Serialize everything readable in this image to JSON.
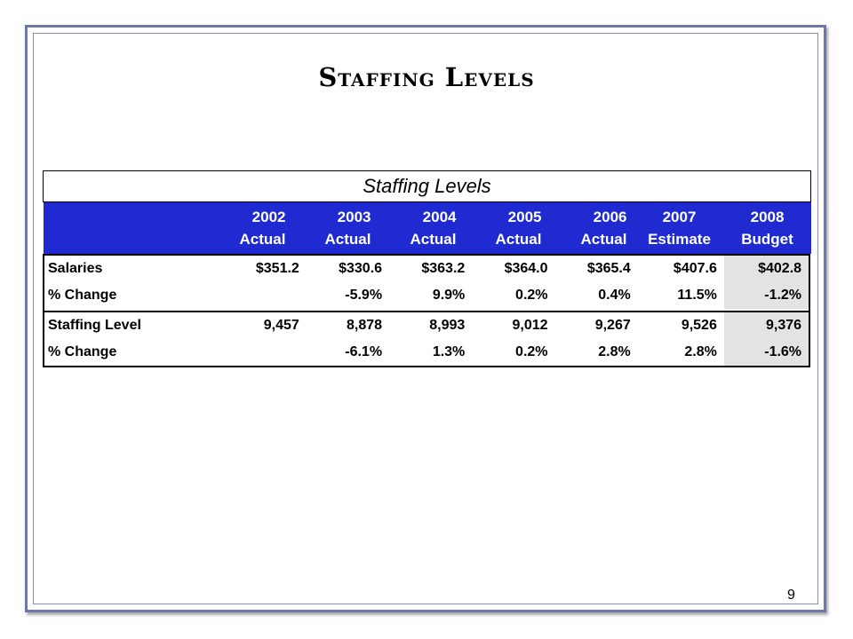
{
  "slide": {
    "title": "Staffing Levels",
    "page_number": "9"
  },
  "table": {
    "caption": "Staffing Levels",
    "columns": [
      {
        "year": "2002",
        "type": "Actual"
      },
      {
        "year": "2003",
        "type": "Actual"
      },
      {
        "year": "2004",
        "type": "Actual"
      },
      {
        "year": "2005",
        "type": "Actual"
      },
      {
        "year": "2006",
        "type": "Actual"
      },
      {
        "year": "2007",
        "type": "Estimate"
      },
      {
        "year": "2008",
        "type": "Budget"
      }
    ],
    "rows": [
      {
        "label": "Salaries",
        "values": [
          "$351.2",
          "$330.6",
          "$363.2",
          "$364.0",
          "$365.4",
          "$407.6",
          "$402.8"
        ]
      },
      {
        "label": "% Change",
        "values": [
          "",
          "-5.9%",
          "9.9%",
          "0.2%",
          "0.4%",
          "11.5%",
          "-1.2%"
        ]
      },
      {
        "label": "Staffing Level",
        "values": [
          "9,457",
          "8,878",
          "8,993",
          "9,012",
          "9,267",
          "9,526",
          "9,376"
        ]
      },
      {
        "label": "% Change",
        "values": [
          "",
          "-6.1%",
          "1.3%",
          "0.2%",
          "2.8%",
          "2.8%",
          "-1.6%"
        ]
      }
    ],
    "colors": {
      "header_background": "#1f2bd0",
      "header_text": "#ffffff",
      "budget_column_shade": "#e3e3e3"
    }
  }
}
